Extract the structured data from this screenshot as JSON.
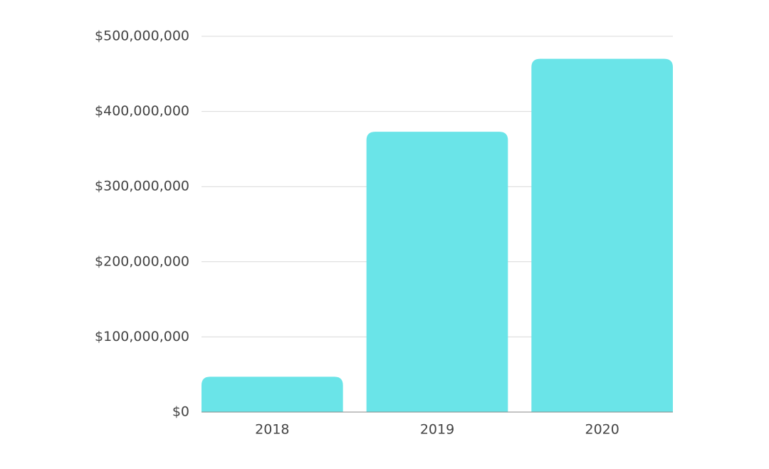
{
  "chart_data": {
    "type": "bar",
    "categories": [
      "2018",
      "2019",
      "2020"
    ],
    "values": [
      47000000,
      373000000,
      470000000
    ],
    "color": "#6ae4e8",
    "ylim": [
      0,
      500000000
    ],
    "yticks": [
      {
        "value": 0,
        "label": "$0"
      },
      {
        "value": 100000000,
        "label": "$100,000,000"
      },
      {
        "value": 200000000,
        "label": "$200,000,000"
      },
      {
        "value": 300000000,
        "label": "$300,000,000"
      },
      {
        "value": 400000000,
        "label": "$400,000,000"
      },
      {
        "value": 500000000,
        "label": "$500,000,000"
      }
    ],
    "grid": true
  }
}
